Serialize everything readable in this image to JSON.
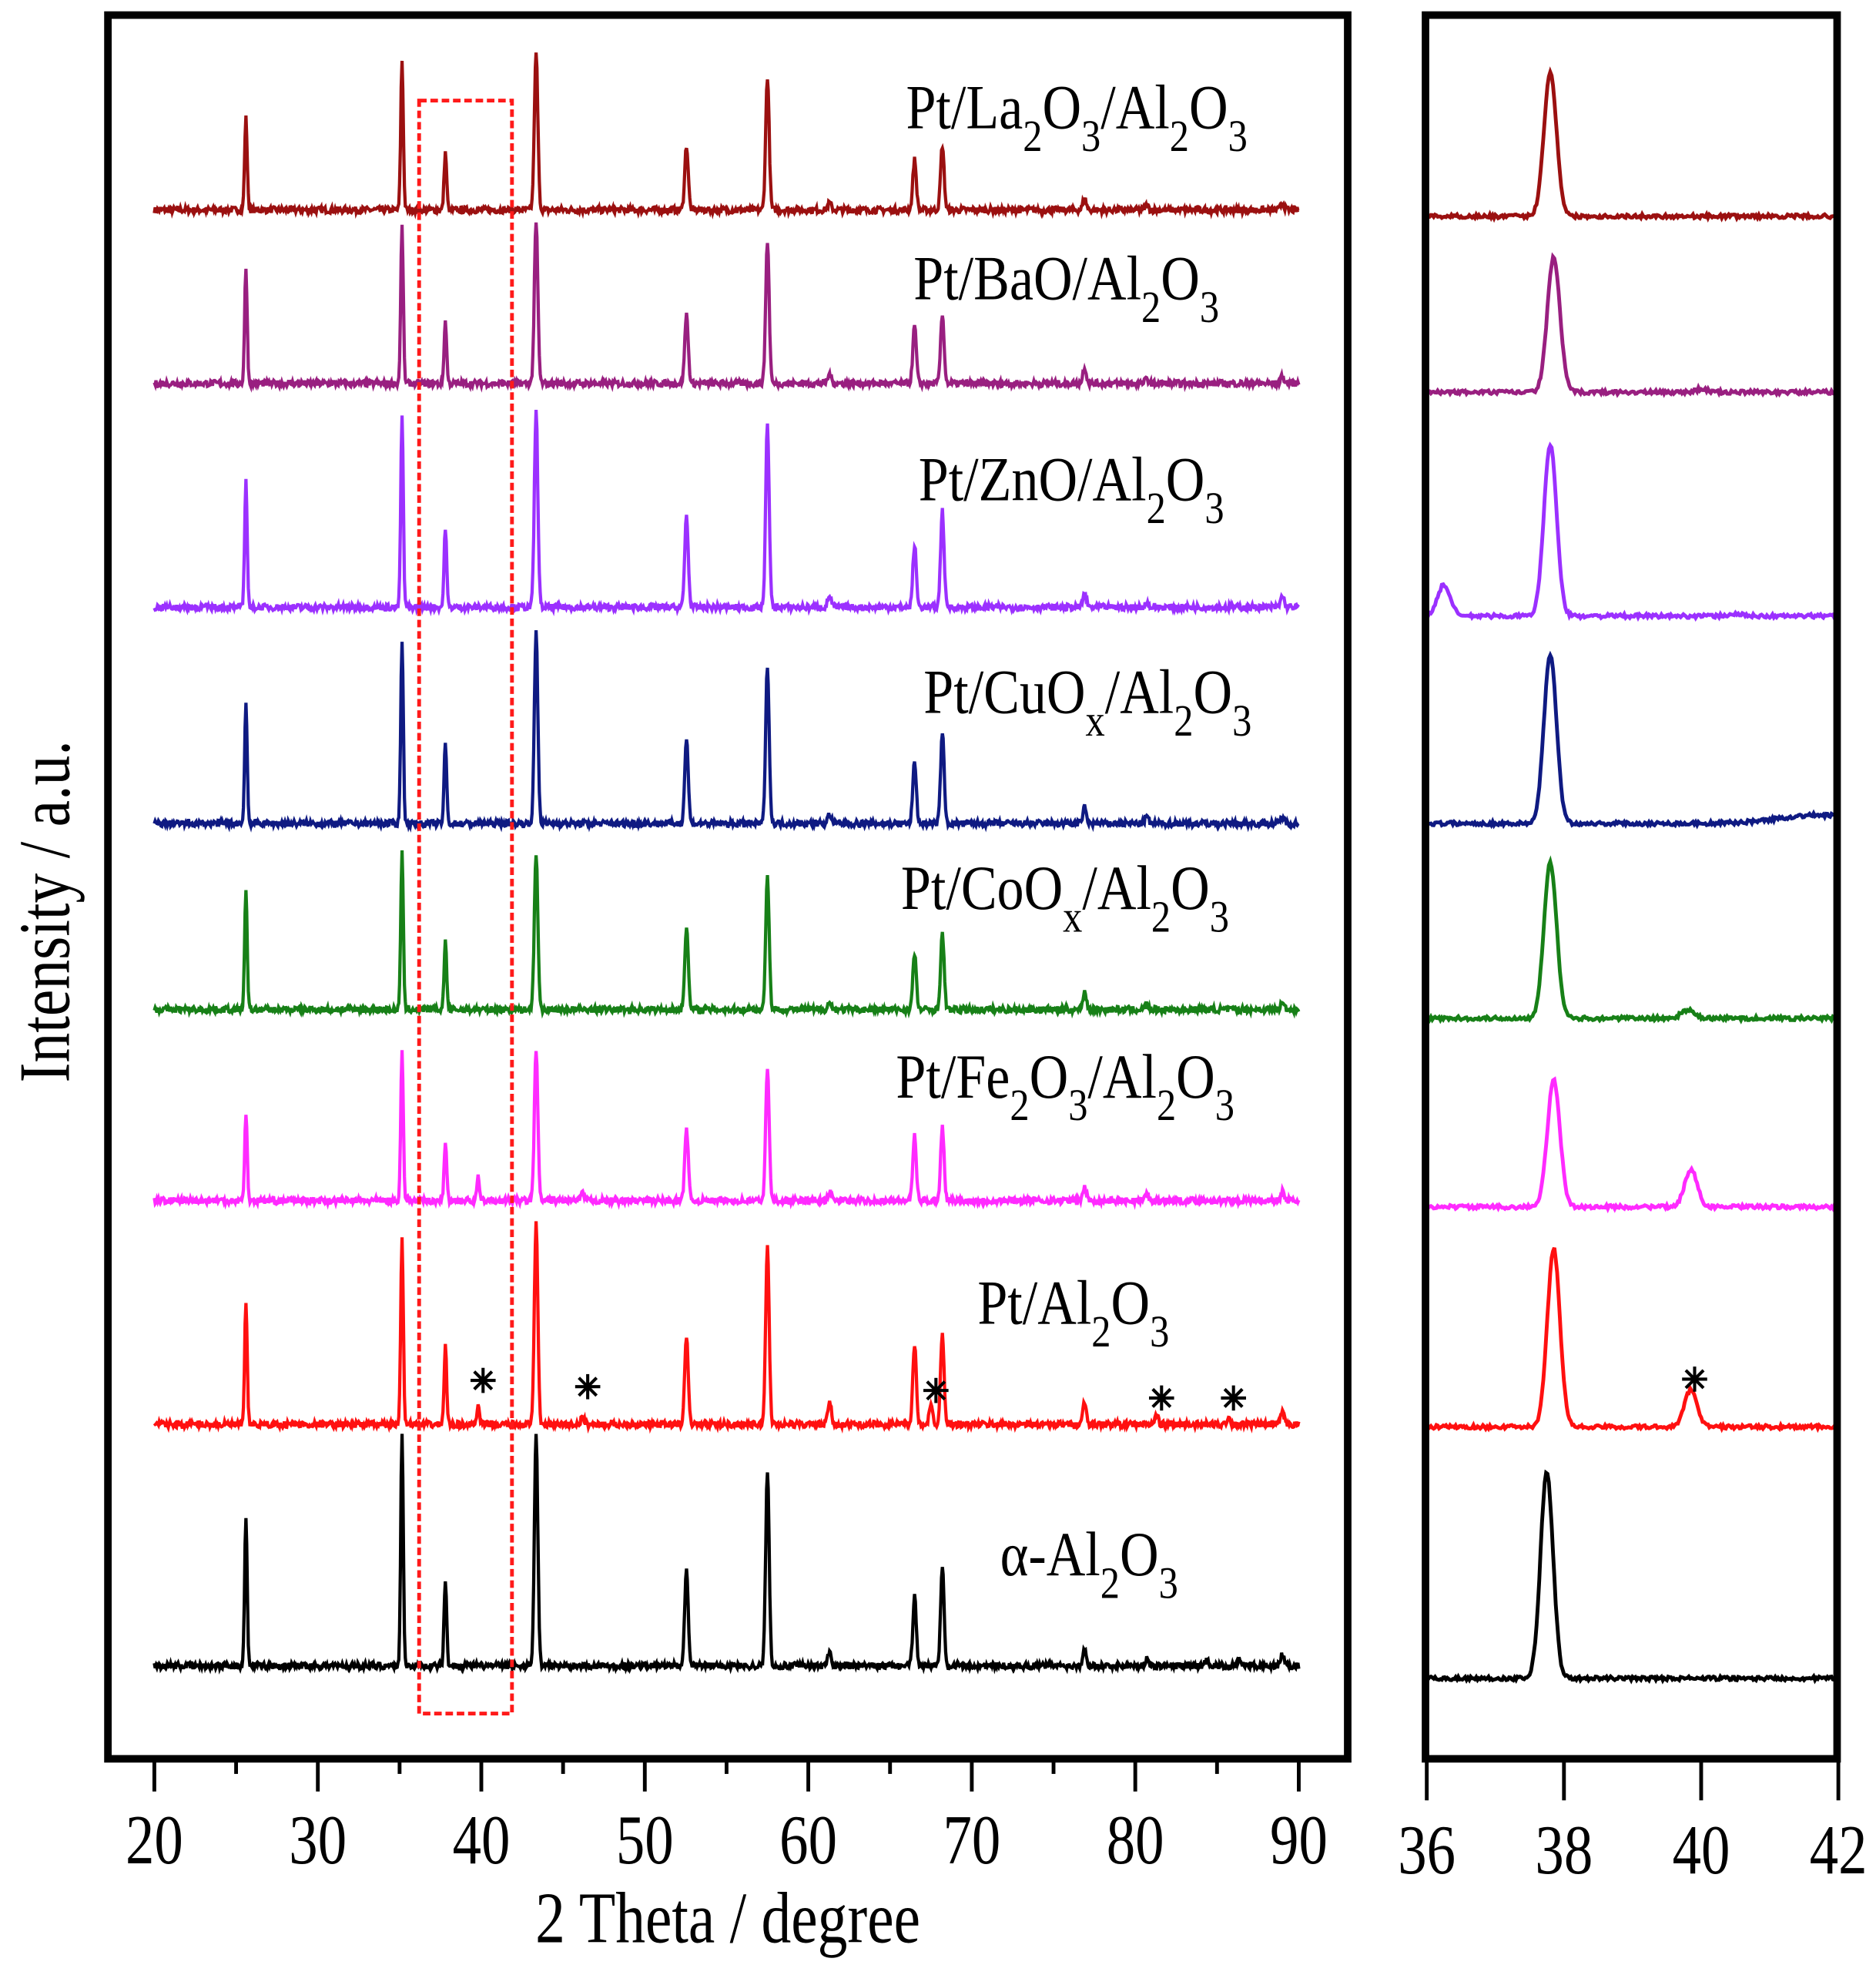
{
  "chart_data": [
    {
      "type": "line",
      "panel": "main",
      "xlabel": "2 Theta / degree",
      "ylabel": "Intensity / a.u.",
      "xlim": [
        20,
        90
      ],
      "xticks": [
        "20",
        "30",
        "40",
        "50",
        "60",
        "70",
        "80",
        "90"
      ],
      "stacked_offset": true,
      "highlight_box_x": [
        36.3,
        41.9
      ],
      "asterisk_marks_x": [
        39.8,
        46.2,
        67.5,
        81.3,
        85.7
      ],
      "asterisk_glyph": "✳",
      "series": [
        {
          "name": "Pt/La2O3/Al2O3",
          "label_parts": [
            [
              "Pt/La",
              ""
            ],
            [
              "2",
              "sub"
            ],
            [
              "O",
              ""
            ],
            [
              "3",
              "sub"
            ],
            [
              "/Al",
              ""
            ],
            [
              "2",
              "sub"
            ],
            [
              "O",
              ""
            ],
            [
              "3",
              "sub"
            ]
          ],
          "color": "#9b1010",
          "peaks": [
            [
              25.6,
              40
            ],
            [
              35.15,
              65
            ],
            [
              37.8,
              25
            ],
            [
              43.35,
              68
            ],
            [
              52.55,
              28
            ],
            [
              57.5,
              58
            ],
            [
              61.3,
              3
            ],
            [
              66.5,
              22
            ],
            [
              68.2,
              28
            ],
            [
              76.9,
              5
            ],
            [
              80.7,
              2
            ],
            [
              89.0,
              3
            ]
          ]
        },
        {
          "name": "Pt/BaO/Al2O3",
          "label_parts": [
            [
              "Pt/BaO/Al",
              ""
            ],
            [
              "2",
              "sub"
            ],
            [
              "O",
              ""
            ],
            [
              "3",
              "sub"
            ]
          ],
          "color": "#991f80",
          "peaks": [
            [
              25.6,
              50
            ],
            [
              35.15,
              68
            ],
            [
              37.8,
              27
            ],
            [
              43.35,
              70
            ],
            [
              52.55,
              30
            ],
            [
              57.5,
              62
            ],
            [
              61.3,
              4
            ],
            [
              66.5,
              25
            ],
            [
              68.2,
              30
            ],
            [
              76.9,
              7
            ],
            [
              80.7,
              2
            ],
            [
              89.0,
              3
            ]
          ]
        },
        {
          "name": "Pt/ZnO/Al2O3",
          "label_parts": [
            [
              "Pt/ZnO/Al",
              ""
            ],
            [
              "2",
              "sub"
            ],
            [
              "O",
              ""
            ],
            [
              "3",
              "sub"
            ]
          ],
          "color": "#9b30ff",
          "peaks": [
            [
              25.6,
              55
            ],
            [
              35.15,
              83
            ],
            [
              37.8,
              35
            ],
            [
              43.35,
              85
            ],
            [
              52.55,
              40
            ],
            [
              57.5,
              80
            ],
            [
              61.3,
              5
            ],
            [
              66.5,
              27
            ],
            [
              68.2,
              42
            ],
            [
              76.9,
              6
            ],
            [
              80.7,
              2
            ],
            [
              89.0,
              5
            ]
          ]
        },
        {
          "name": "Pt/CuOx/Al2O3",
          "label_parts": [
            [
              "Pt/CuO",
              ""
            ],
            [
              "x",
              "sub"
            ],
            [
              "/Al",
              ""
            ],
            [
              "2",
              "sub"
            ],
            [
              "O",
              ""
            ],
            [
              "3",
              "sub"
            ]
          ],
          "color": "#0f1a82",
          "peaks": [
            [
              25.6,
              52
            ],
            [
              35.15,
              80
            ],
            [
              37.8,
              35
            ],
            [
              43.35,
              83
            ],
            [
              52.55,
              37
            ],
            [
              57.5,
              69
            ],
            [
              61.3,
              4
            ],
            [
              66.5,
              27
            ],
            [
              68.2,
              40
            ],
            [
              76.9,
              7
            ],
            [
              80.7,
              3
            ],
            [
              89.0,
              3
            ]
          ]
        },
        {
          "name": "Pt/CoOx/Al2O3",
          "label_parts": [
            [
              "Pt/CoO",
              ""
            ],
            [
              "x",
              "sub"
            ],
            [
              "/Al",
              ""
            ],
            [
              "2",
              "sub"
            ],
            [
              "O",
              ""
            ],
            [
              "3",
              "sub"
            ]
          ],
          "color": "#178017",
          "peaks": [
            [
              25.6,
              51
            ],
            [
              35.15,
              68
            ],
            [
              37.8,
              30
            ],
            [
              43.35,
              68
            ],
            [
              52.55,
              36
            ],
            [
              57.5,
              58
            ],
            [
              61.3,
              3
            ],
            [
              66.5,
              24
            ],
            [
              68.2,
              33
            ],
            [
              76.9,
              8
            ],
            [
              80.7,
              2
            ],
            [
              89.0,
              3
            ]
          ]
        },
        {
          "name": "Pt/Fe2O3/Al2O3",
          "label_parts": [
            [
              "Pt/Fe",
              ""
            ],
            [
              "2",
              "sub"
            ],
            [
              "O",
              ""
            ],
            [
              "3",
              "sub"
            ],
            [
              "/Al",
              ""
            ],
            [
              "2",
              "sub"
            ],
            [
              "O",
              ""
            ],
            [
              "3",
              "sub"
            ]
          ],
          "color": "#ff2aff",
          "peaks": [
            [
              25.6,
              38
            ],
            [
              35.15,
              65
            ],
            [
              37.8,
              26
            ],
            [
              39.8,
              10
            ],
            [
              43.35,
              65
            ],
            [
              46.2,
              3
            ],
            [
              52.55,
              32
            ],
            [
              57.5,
              58
            ],
            [
              61.3,
              4
            ],
            [
              66.5,
              28
            ],
            [
              68.2,
              32
            ],
            [
              76.9,
              6
            ],
            [
              80.7,
              3
            ],
            [
              89.0,
              4
            ]
          ]
        },
        {
          "name": "Pt/Al2O3",
          "label_parts": [
            [
              "Pt/Al",
              ""
            ],
            [
              "2",
              "sub"
            ],
            [
              "O",
              ""
            ],
            [
              "3",
              "sub"
            ]
          ],
          "color": "#ff1010",
          "peaks": [
            [
              25.6,
              52
            ],
            [
              35.15,
              82
            ],
            [
              37.8,
              34
            ],
            [
              39.8,
              8
            ],
            [
              43.35,
              87
            ],
            [
              46.2,
              3
            ],
            [
              52.55,
              38
            ],
            [
              57.5,
              78
            ],
            [
              61.3,
              10
            ],
            [
              66.5,
              35
            ],
            [
              67.5,
              8
            ],
            [
              68.2,
              40
            ],
            [
              76.9,
              10
            ],
            [
              81.3,
              4
            ],
            [
              85.7,
              3
            ],
            [
              89.0,
              5
            ]
          ]
        },
        {
          "name": "α-Al2O3",
          "label_parts": [
            [
              "α-Al",
              ""
            ],
            [
              "2",
              "sub"
            ],
            [
              "O",
              ""
            ],
            [
              "3",
              "sub"
            ]
          ],
          "color": "#000000",
          "peaks": [
            [
              25.6,
              64
            ],
            [
              35.15,
              100
            ],
            [
              37.8,
              38
            ],
            [
              43.35,
              100
            ],
            [
              52.55,
              43
            ],
            [
              57.5,
              85
            ],
            [
              61.3,
              6
            ],
            [
              66.5,
              30
            ],
            [
              68.2,
              44
            ],
            [
              76.9,
              8
            ],
            [
              80.7,
              3
            ],
            [
              84.4,
              3
            ],
            [
              86.4,
              3
            ],
            [
              89.0,
              5
            ]
          ]
        }
      ]
    },
    {
      "type": "line",
      "panel": "zoom",
      "xlim": [
        36,
        42
      ],
      "xticks": [
        "36",
        "38",
        "40",
        "42"
      ],
      "asterisk_marks_x": [
        39.85
      ],
      "series": [
        {
          "color": "#9b1010",
          "peaks": [
            [
              37.8,
              69
            ]
          ]
        },
        {
          "color": "#991f80",
          "peaks": [
            [
              37.85,
              65
            ],
            [
              40.0,
              1.5
            ]
          ]
        },
        {
          "color": "#9b30ff",
          "peaks": [
            [
              36.25,
              15
            ],
            [
              37.8,
              83
            ],
            [
              40.5,
              1
            ]
          ]
        },
        {
          "color": "#0f1a82",
          "peaks": [
            [
              37.8,
              81
            ],
            [
              41.7,
              4
            ]
          ]
        },
        {
          "color": "#178017",
          "peaks": [
            [
              37.8,
              75
            ],
            [
              39.8,
              4
            ]
          ]
        },
        {
          "color": "#ff2aff",
          "peaks": [
            [
              37.85,
              61
            ],
            [
              39.85,
              18
            ]
          ]
        },
        {
          "color": "#ff1010",
          "peaks": [
            [
              37.85,
              86
            ],
            [
              39.85,
              18
            ]
          ]
        },
        {
          "color": "#000000",
          "peaks": [
            [
              37.75,
              99
            ]
          ]
        }
      ]
    }
  ]
}
